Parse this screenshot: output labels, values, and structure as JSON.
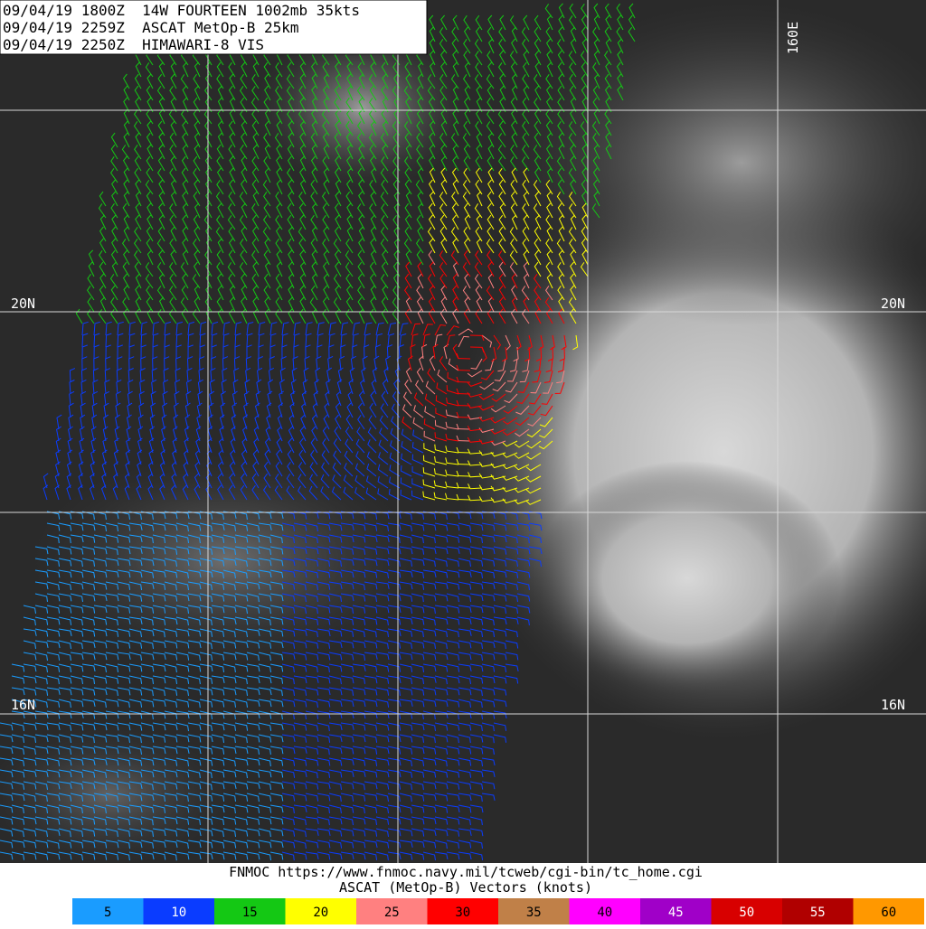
{
  "header": {
    "lines": [
      "09/04/19 1800Z  14W FOURTEEN 1002mb 35kts",
      "09/04/19 2259Z  ASCAT MetOp-B 25km",
      "09/04/19 2250Z  HIMAWARI-8 VIS"
    ]
  },
  "grid_labels": {
    "lon": "160E",
    "lat_north_left": "20N",
    "lat_north_right": "20N",
    "lat_south_left": "16N",
    "lat_south_right": "16N"
  },
  "footer": {
    "source": "FNMOC https://www.fnmoc.navy.mil/tcweb/cgi-bin/tc_home.cgi",
    "title": "ASCAT (MetOp-B) Vectors (knots)"
  },
  "legend": {
    "items": [
      {
        "value": 5,
        "color": "#1a9cff"
      },
      {
        "value": 10,
        "color": "#0a3cff"
      },
      {
        "value": 15,
        "color": "#14c814"
      },
      {
        "value": 20,
        "color": "#ffff00"
      },
      {
        "value": 25,
        "color": "#ff8080"
      },
      {
        "value": 30,
        "color": "#ff0000"
      },
      {
        "value": 35,
        "color": "#c08048"
      },
      {
        "value": 40,
        "color": "#ff00ff"
      },
      {
        "value": 45,
        "color": "#a000c8"
      },
      {
        "value": 50,
        "color": "#d80000"
      },
      {
        "value": 55,
        "color": "#b00000"
      },
      {
        "value": 60,
        "color": "#ff9800"
      }
    ]
  }
}
